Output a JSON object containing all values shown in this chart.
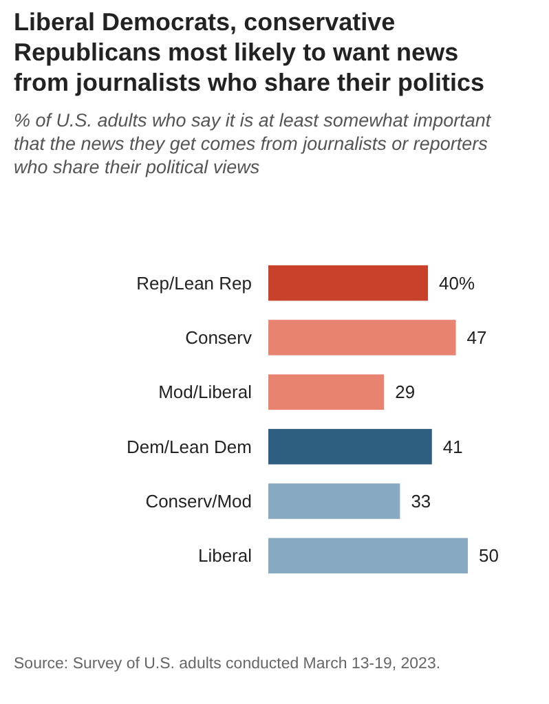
{
  "chart_data": {
    "type": "bar",
    "orientation": "horizontal",
    "title": "Liberal Democrats, conservative Republicans most likely to want news from journalists who share their politics",
    "subtitle": "% of U.S. adults who say it is at least somewhat important that the news they get comes from journalists or reporters who share their political views",
    "categories": [
      "Rep/Lean Rep",
      "Conserv",
      "Mod/Liberal",
      "Dem/Lean Dem",
      "Conserv/Mod",
      "Liberal"
    ],
    "values": [
      40,
      47,
      29,
      41,
      33,
      50
    ],
    "colors": [
      "#c9412b",
      "#e8836f",
      "#e8836f",
      "#2f5f80",
      "#88a9c2",
      "#88a9c2"
    ],
    "value_labels": [
      "40%",
      "47",
      "29",
      "41",
      "33",
      "50"
    ],
    "annotations": [
      "Source: Survey of U.S. adults conducted March 13-19, 2023."
    ]
  }
}
